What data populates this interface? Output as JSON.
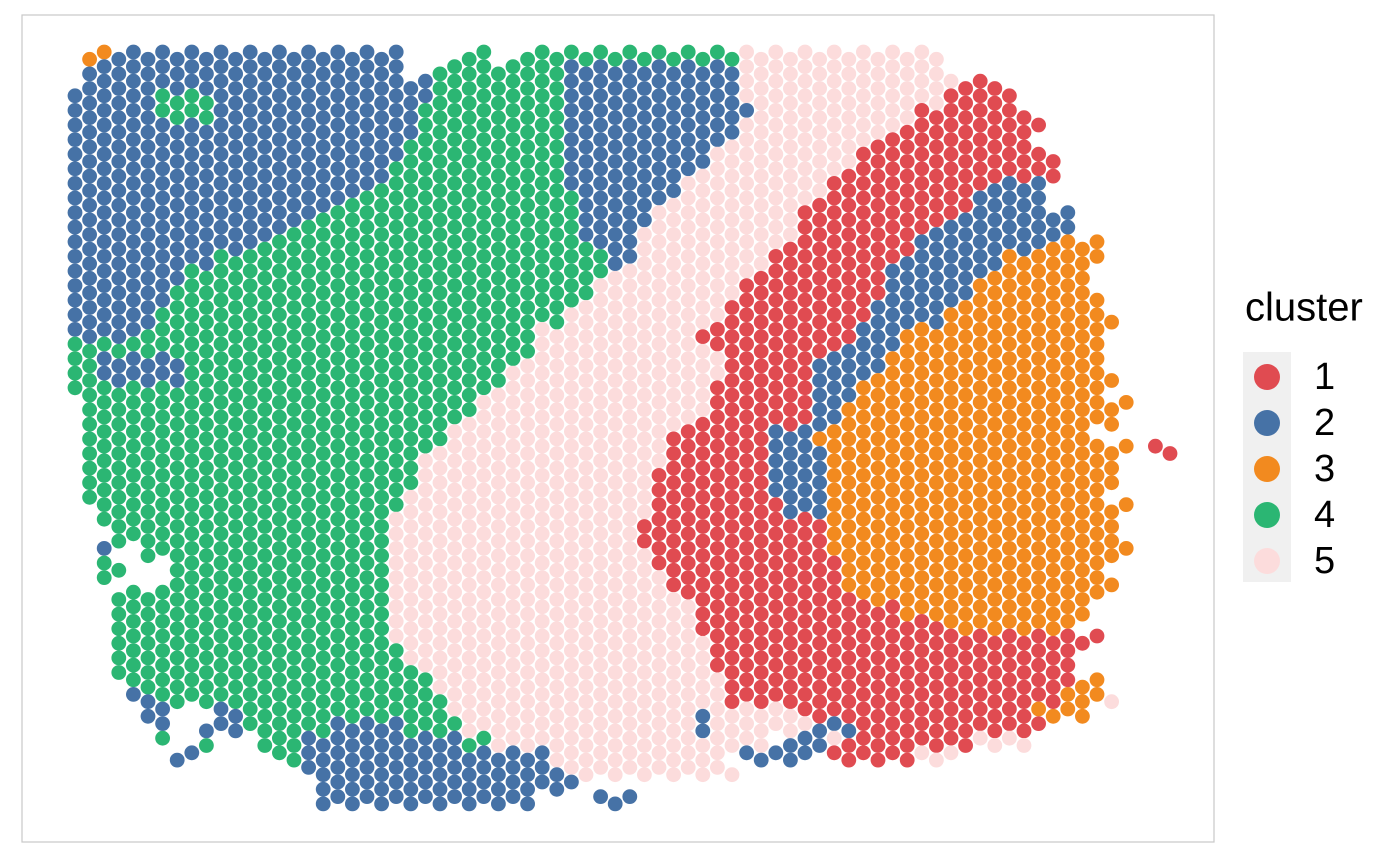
{
  "chart_data": {
    "type": "scatter",
    "legend_title": "cluster",
    "legend_position": "right",
    "series": [
      {
        "name": "1",
        "color": "#e04b51"
      },
      {
        "name": "2",
        "color": "#4672a6"
      },
      {
        "name": "3",
        "color": "#f28a1f"
      },
      {
        "name": "4",
        "color": "#2bb673"
      },
      {
        "name": "5",
        "color": "#fcdcdc"
      }
    ],
    "grid_rows": [
      ".3322222222222222222222....44..44444444444444455555555555555...............",
      ".2222222222222222222222..44444444422222222222255555555555555...............",
      ".222222222222222222222222444444444222222222222555555555555555111...........",
      "22222244442222222222222224444444442222222222225555555555555511111..........",
      "222222444422222222222222444444444422222222222225555555555511111111.........",
      "2222222222222222222222224444444444222222222222555555555551111111111.........",
      "222222222222222222222224444444444422222222222555555555511111111111.........",
      "22222222222222222222222444444444442222222222555555555511111111111111........",
      "22222222222222222222224444444444442222222225555555555111111111111111........",
      "2222222222222222222224444444444444222222225555555555111111111112222........",
      "2222222222222222222444444444444444422222255555555551111111111122222........",
      "222222222222222224444444444444444442222255555555551111111111122222222.......",
      "222222222222222444444444444444444442222555555555551111111112222222222.......",
      "22222222222224444444444444444444444422255555555551111111112222222223333......",
      "22222222224444444444444444444444444442255555555511111111122222223333333.....",
      "2222222244444444444444444444444444444555555555511111111122222223333333.....",
      "2222222444444444444444444444444444445555555555111111111122222233333333.....",
      "22222224444444444444444444444444444555555555511111111112222223333333333.....",
      "222222444444444444444444444444444455555555555111111111122222333333333333.....",
      "22222444444444444444444444444444555555555551111111111122233333333333333.....",
      "44444444444444444444444444444444555555555555111111111222233333333333333....",
      "44222222444444444444444444444445555555555555511111122222333333333333333....",
      "442222224444444444444444444444555555555555555111111222233333333333333333....",
      "44444444444444444444444444444555555555555555111111122233333333333333333....",
      ".444444444444444444444444444555555555555555511111112233333333333333333333....",
      ".44444444444444444444444444555555555555555511111111223333333333333333333....",
      ".444444444444444444444444455555555555555511111112223333333333333333333....",
      ".444444444444444444444444555555555555555511111112222333333333333333333333.11.",
      ".44444444444444444444444555555555555555551111111222233333333333333333333....",
      ".44444444444444444444444555555555555555511111111222233333333333333333333....",
      ".4444444444444444444444555555555555555551111111122223333333333333333333....",
      "..44444444444444444444455555555555555555111111111222333333333333333333333....",
      "..4444444444444444444455555555555555555111111111111133333333333333333333...",
      "...444444444444444444455555555555555555111111111111133333333333333333333...",
      "..2..44444444444444444555555555555555555111111111111333333333333333333333...",
      "..44...4444444444444445555555555555555551111111111111333333333333333333...",
      "..4....44444444444444455555555555555555551111111111113333333333333333333....",
      "...44444444444444444445555555555555555555511111111111133333333333333333.....",
      "...4444444444444444444555555555555555555555111111111111113333333333333.....",
      "...444444444444444444455555555555555555555511111111111111111333333333......",
      "...44444444444444444445555555555555555555555111111111111111111111111111......",
      "...444444444444444444445555555555555555555551111111111111111111111111......",
      "...444444444444444444444555555555555555555551111111111111111111111111.....",
      "....4444444444444444444445555555555555555555511111111111111111111111133....",
      "....22444444444444444444445555555555555555555111111111111111111111113335....",
      ".....22...224444444444444455555555555555555255555511111111111111113333......",
      "......2..2224444442222244445555555555555555255555552221111111111111.........",
      "......4..4...44422222222222445555555555555555555.22251111111115555..........",
      ".......22.....4422222222222222222555555555555.22222.111111555.............",
      "................222222222222222222555555555555..............................",
      ".................222222222222222222........................................",
      ".................222222222222222....222...................................."
    ]
  }
}
